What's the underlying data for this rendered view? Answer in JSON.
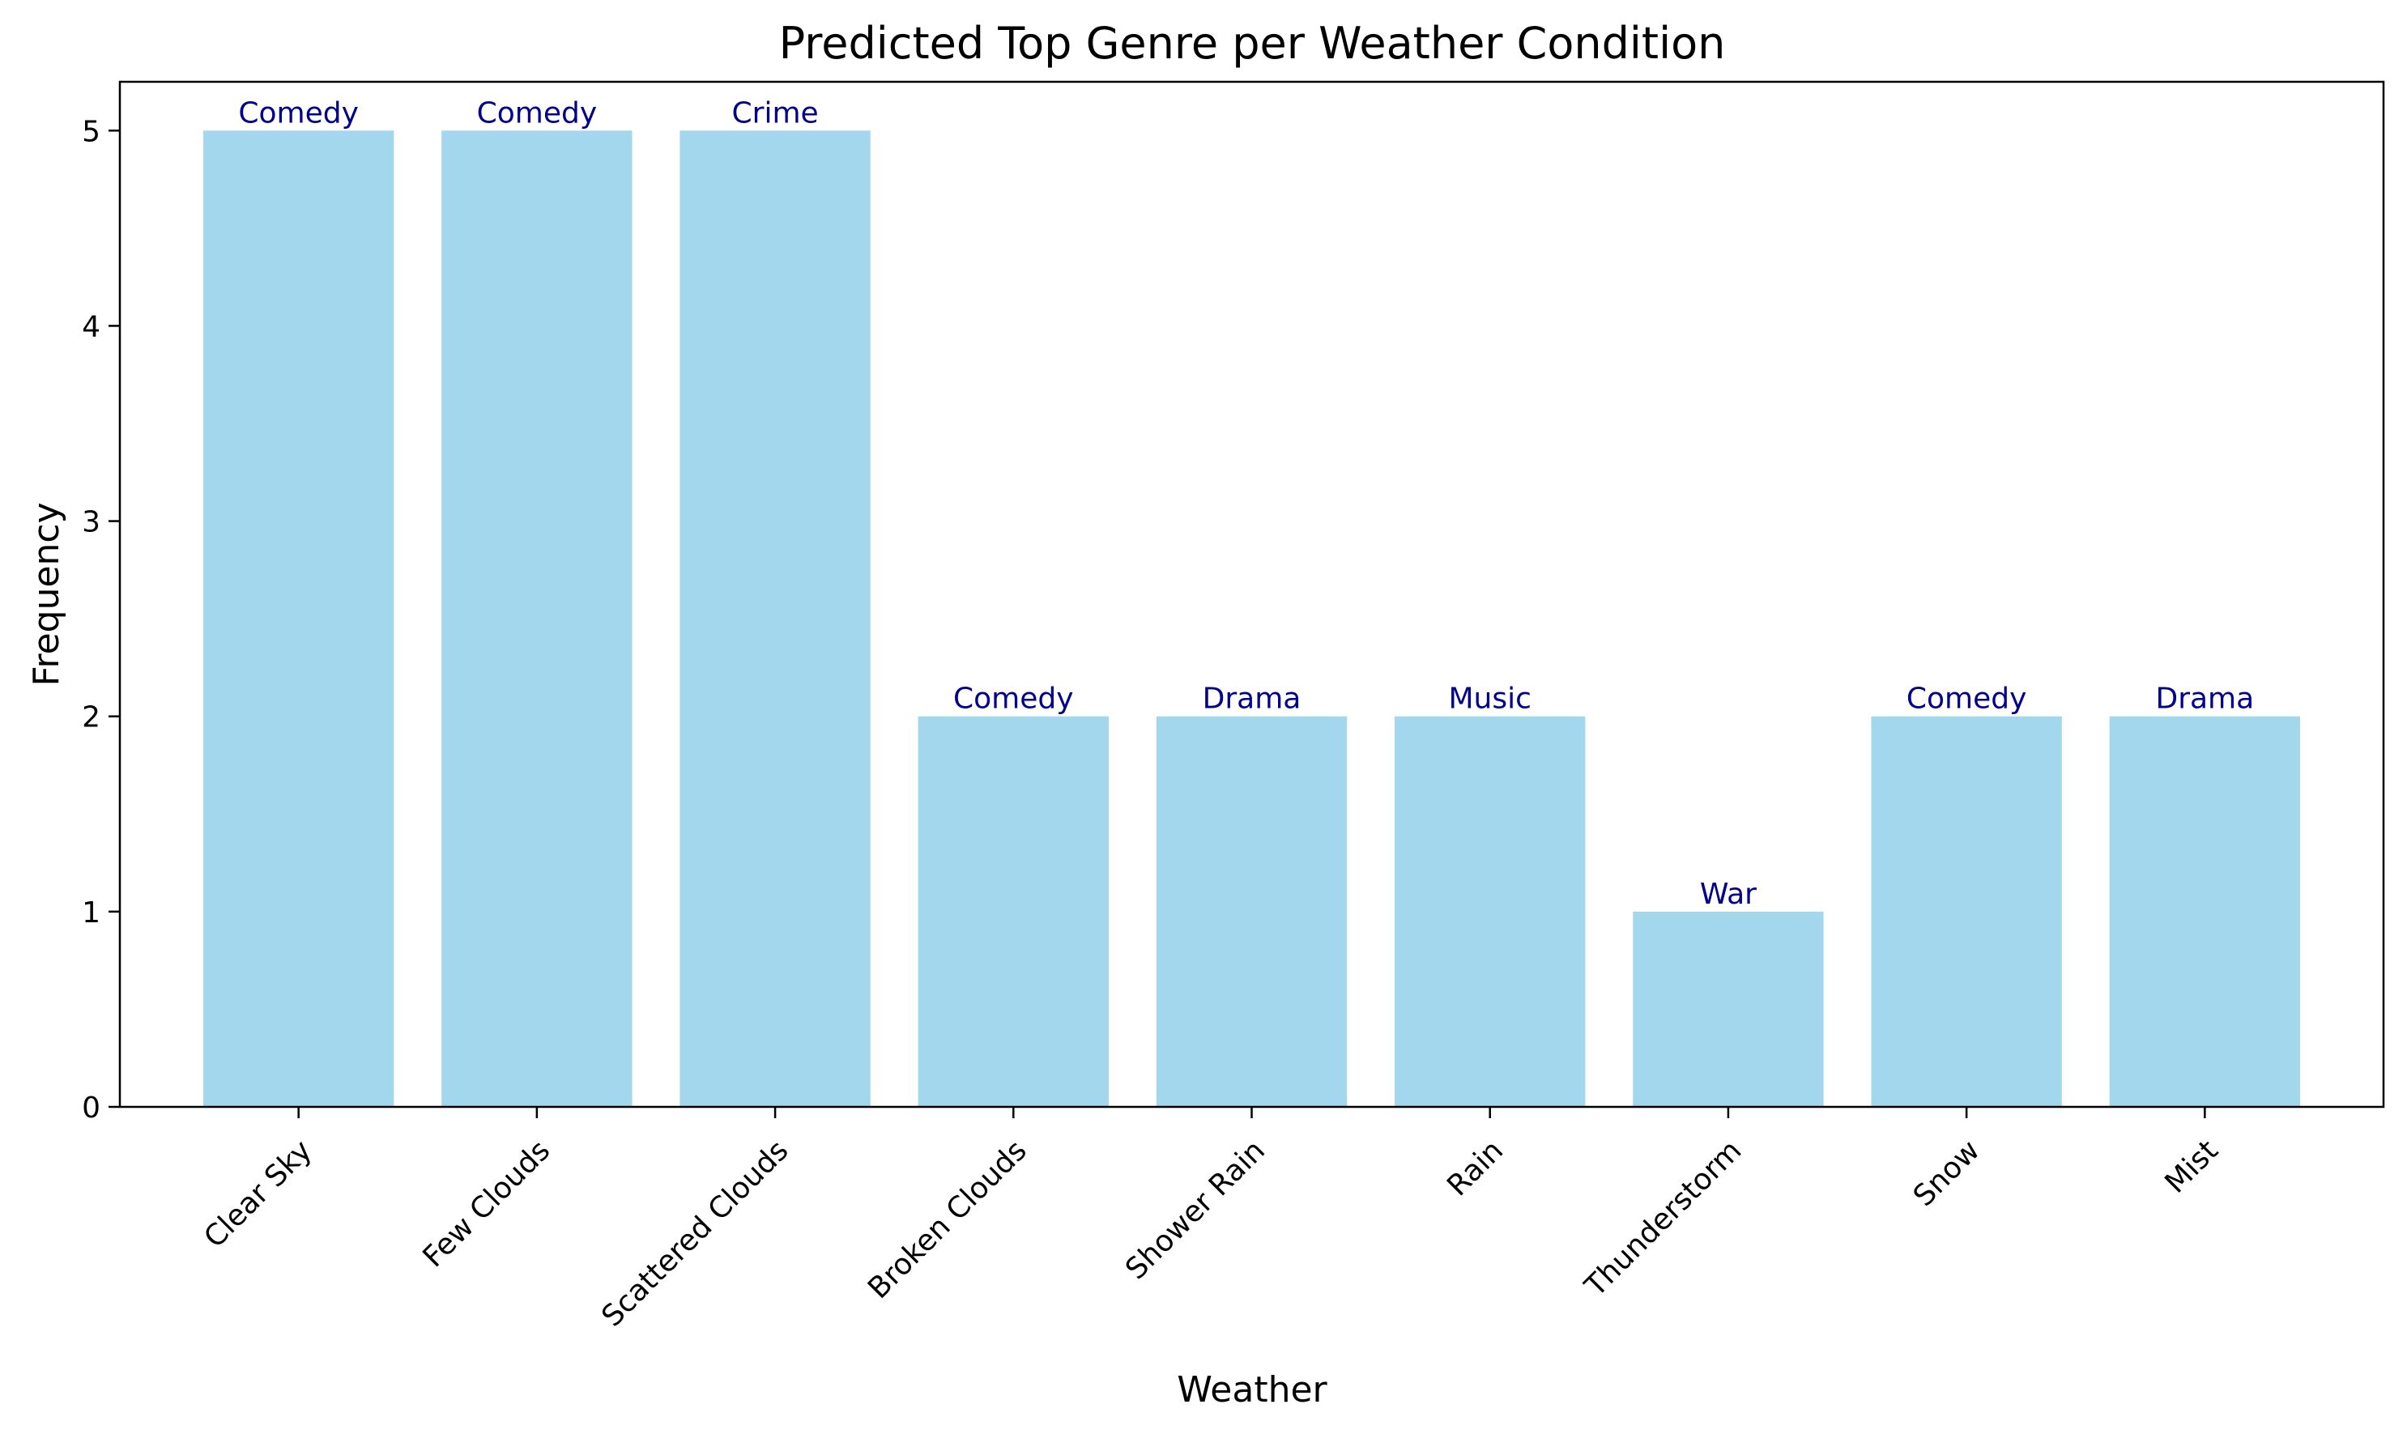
{
  "chart_data": {
    "type": "bar",
    "title": "Predicted Top Genre per Weather Condition",
    "xlabel": "Weather",
    "ylabel": "Frequency",
    "categories": [
      "Clear Sky",
      "Few Clouds",
      "Scattered Clouds",
      "Broken Clouds",
      "Shower Rain",
      "Rain",
      "Thunderstorm",
      "Snow",
      "Mist"
    ],
    "values": [
      5,
      5,
      5,
      2,
      2,
      2,
      1,
      2,
      2
    ],
    "bar_labels": [
      "Comedy",
      "Comedy",
      "Crime",
      "Comedy",
      "Drama",
      "Music",
      "War",
      "Comedy",
      "Drama"
    ],
    "ylim": [
      0,
      5.25
    ],
    "yticks": [
      0,
      1,
      2,
      3,
      4,
      5
    ],
    "grid": false,
    "colors": {
      "bar": "#a2d7ee",
      "bar_label": "#00008b",
      "axis": "#000000"
    }
  }
}
